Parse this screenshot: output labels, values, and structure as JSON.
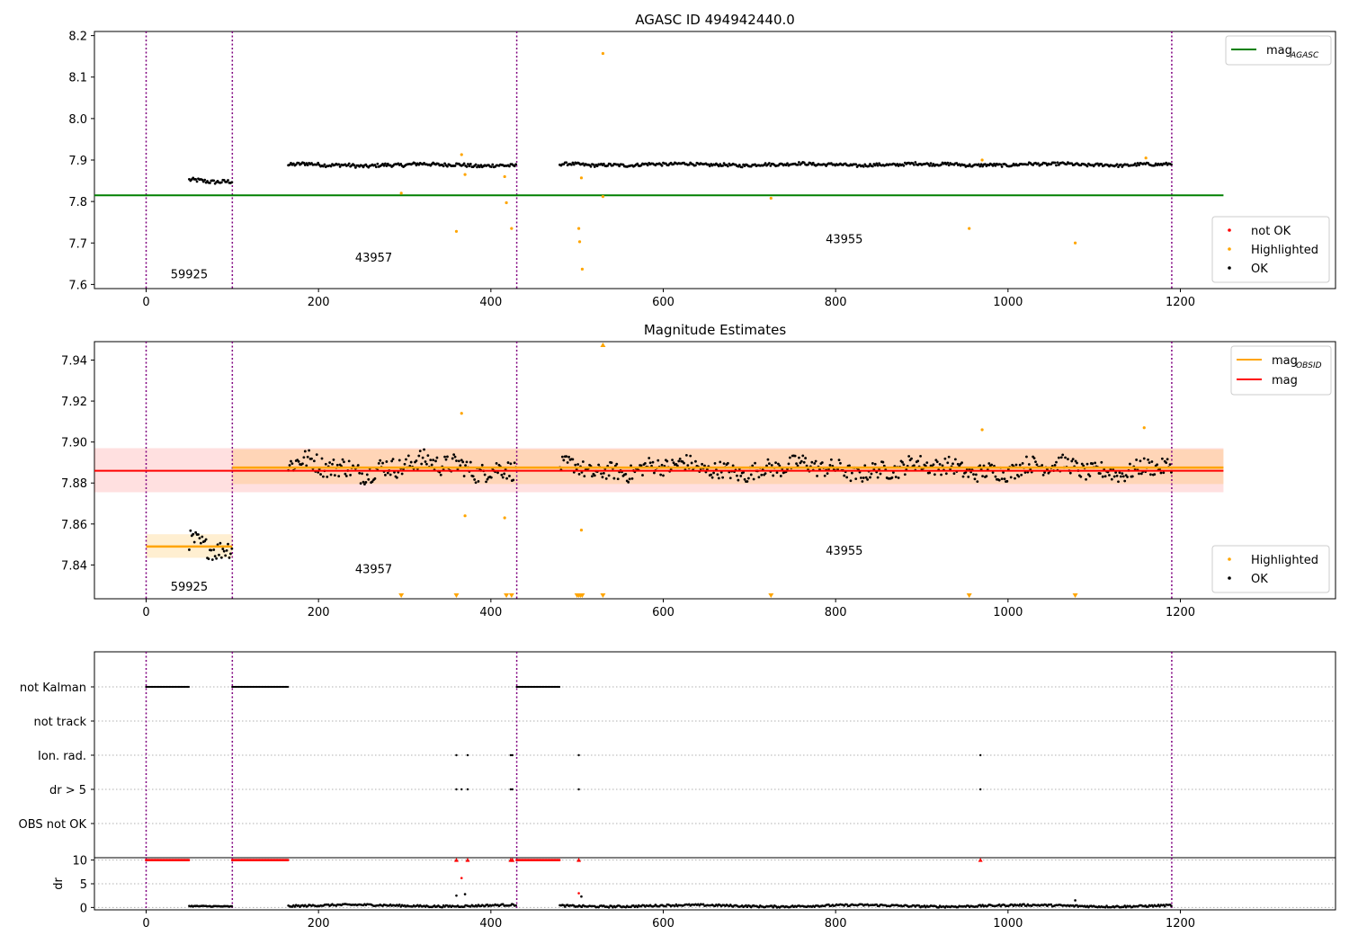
{
  "chart_data": [
    {
      "type": "scatter",
      "title": "AGASC ID 494942440.0",
      "xlabel": "",
      "ylabel": "",
      "xlim": [
        -60,
        1380
      ],
      "ylim": [
        7.59,
        8.21
      ],
      "yticks": [
        "7.6",
        "7.7",
        "7.8",
        "7.9",
        "8.0",
        "8.1",
        "8.2"
      ],
      "xticks": [
        "0",
        "200",
        "400",
        "600",
        "800",
        "1000",
        "1200"
      ],
      "obsid_boundaries": [
        0,
        100,
        430,
        1190
      ],
      "obsid_labels": [
        {
          "text": "59925",
          "x": 50,
          "y": 7.615
        },
        {
          "text": "43957",
          "x": 264,
          "y": 7.655
        },
        {
          "text": "43955",
          "x": 810,
          "y": 7.7
        }
      ],
      "reference_line": {
        "name": "mag_AGASC",
        "y": 7.815,
        "x_range": [
          -60,
          1250
        ],
        "color": "#008000"
      },
      "ok_segments": [
        {
          "x_range": [
            50,
            100
          ],
          "y_mean": 7.849,
          "y_jitter": 0.007
        },
        {
          "x_range": [
            165,
            430
          ],
          "y_mean": 7.888,
          "y_jitter": 0.006
        },
        {
          "x_range": [
            480,
            1190
          ],
          "y_mean": 7.889,
          "y_jitter": 0.005
        }
      ],
      "highlighted_points": [
        {
          "x": 296,
          "y": 7.82
        },
        {
          "x": 360,
          "y": 7.728
        },
        {
          "x": 366,
          "y": 7.913
        },
        {
          "x": 370,
          "y": 7.865
        },
        {
          "x": 416,
          "y": 7.86
        },
        {
          "x": 418,
          "y": 7.797
        },
        {
          "x": 424,
          "y": 7.735
        },
        {
          "x": 502,
          "y": 7.735
        },
        {
          "x": 503,
          "y": 7.703
        },
        {
          "x": 505,
          "y": 7.857
        },
        {
          "x": 506,
          "y": 7.637
        },
        {
          "x": 530,
          "y": 7.812
        },
        {
          "x": 530,
          "y": 8.157
        },
        {
          "x": 725,
          "y": 7.808
        },
        {
          "x": 955,
          "y": 7.735
        },
        {
          "x": 970,
          "y": 7.9
        },
        {
          "x": 1078,
          "y": 7.7
        },
        {
          "x": 1160,
          "y": 7.905
        }
      ],
      "legend_lines": [
        {
          "label": "mag",
          "sub": "AGASC",
          "color": "#008000"
        }
      ],
      "legend_points": [
        {
          "label": "not OK",
          "color": "#ff0000"
        },
        {
          "label": "Highlighted",
          "color": "#ffa500"
        },
        {
          "label": "OK",
          "color": "#000000"
        }
      ]
    },
    {
      "type": "scatter",
      "title": "Magnitude Estimates",
      "xlabel": "",
      "ylabel": "",
      "xlim": [
        -60,
        1380
      ],
      "ylim": [
        7.8235,
        7.949
      ],
      "yticks": [
        "7.84",
        "7.86",
        "7.88",
        "7.90",
        "7.92",
        "7.94"
      ],
      "xticks": [
        "0",
        "200",
        "400",
        "600",
        "800",
        "1000",
        "1200"
      ],
      "obsid_boundaries": [
        0,
        100,
        430,
        1190
      ],
      "obsid_labels": [
        {
          "text": "59925",
          "x": 50,
          "y": 7.8275
        },
        {
          "text": "43957",
          "x": 264,
          "y": 7.836
        },
        {
          "text": "43955",
          "x": 810,
          "y": 7.845
        }
      ],
      "mag_line": {
        "name": "mag",
        "y": 7.886,
        "band": [
          7.8755,
          7.897
        ],
        "x_range": [
          -60,
          1250
        ],
        "color": "#ff0000"
      },
      "obsid_means": [
        {
          "x_range": [
            0,
            100
          ],
          "y": 7.849,
          "band": [
            7.8435,
            7.855
          ]
        },
        {
          "x_range": [
            100,
            1250
          ],
          "y": 7.8875,
          "band": [
            7.8795,
            7.8965
          ]
        }
      ],
      "ok_segments": [
        {
          "x_range": [
            50,
            100
          ],
          "y_mean": 7.849,
          "y_jitter": 0.007
        },
        {
          "x_range": [
            165,
            430
          ],
          "y_mean": 7.888,
          "y_jitter": 0.007
        },
        {
          "x_range": [
            480,
            1190
          ],
          "y_mean": 7.887,
          "y_jitter": 0.006
        }
      ],
      "highlighted_points": [
        {
          "x": 366,
          "y": 7.914
        },
        {
          "x": 370,
          "y": 7.864
        },
        {
          "x": 416,
          "y": 7.863
        },
        {
          "x": 505,
          "y": 7.857
        },
        {
          "x": 970,
          "y": 7.906
        },
        {
          "x": 1158,
          "y": 7.907
        }
      ],
      "offscale_low_x": [
        296,
        360,
        418,
        424,
        500,
        502,
        504,
        506,
        530,
        725,
        955,
        1078
      ],
      "offscale_high_x": [
        530
      ],
      "legend_lines": [
        {
          "label": "mag",
          "sub": "OBSID",
          "color": "#ffa500"
        },
        {
          "label": "mag",
          "sub": "",
          "color": "#ff0000"
        }
      ],
      "legend_points": [
        {
          "label": "Highlighted",
          "color": "#ffa500"
        },
        {
          "label": "OK",
          "color": "#000000"
        }
      ]
    },
    {
      "type": "scatter",
      "title": "",
      "xlabel": "",
      "ylabel": "",
      "xlim": [
        -60,
        1380
      ],
      "categories": [
        "not Kalman",
        "not track",
        "Ion. rad.",
        "dr > 5",
        "OBS not OK"
      ],
      "obsid_boundaries": [
        0,
        100,
        430,
        1190
      ],
      "flags": {
        "not Kalman": [
          [
            0,
            50
          ],
          [
            100,
            165
          ],
          [
            430,
            480
          ]
        ],
        "not track": [],
        "Ion. rad.": [
          360,
          373,
          423,
          425,
          502,
          968
        ],
        "dr > 5": [
          360,
          366,
          373,
          423,
          425,
          502,
          968
        ],
        "OBS not OK": []
      }
    },
    {
      "type": "scatter",
      "title": "",
      "xlabel": "",
      "ylabel": "dr",
      "xlim": [
        -60,
        1380
      ],
      "ylim": [
        -0.5,
        10.5
      ],
      "yticks": [
        "0",
        "5",
        "10"
      ],
      "xticks": [
        "0",
        "200",
        "400",
        "600",
        "800",
        "1000",
        "1200"
      ],
      "obsid_boundaries": [
        0,
        100,
        430,
        1190
      ],
      "capped_value": 10,
      "capped_ranges": [
        [
          0,
          50
        ],
        [
          100,
          165
        ],
        [
          430,
          480
        ]
      ],
      "capped_points": [
        360,
        373,
        423,
        425,
        502,
        968
      ],
      "ok_segments": [
        {
          "x_range": [
            50,
            100
          ],
          "y_mean": 0.2,
          "y_jitter": 0.2
        },
        {
          "x_range": [
            165,
            430
          ],
          "y_mean": 0.4,
          "y_jitter": 0.4
        },
        {
          "x_range": [
            480,
            1190
          ],
          "y_mean": 0.35,
          "y_jitter": 0.4
        }
      ],
      "outliers": [
        {
          "x": 366,
          "y": 6.2,
          "ok": false
        },
        {
          "x": 360,
          "y": 2.5,
          "ok": true
        },
        {
          "x": 370,
          "y": 2.8,
          "ok": true
        },
        {
          "x": 502,
          "y": 3.0,
          "ok": false
        },
        {
          "x": 505,
          "y": 2.3,
          "ok": true
        },
        {
          "x": 1078,
          "y": 1.5,
          "ok": true
        }
      ]
    }
  ]
}
